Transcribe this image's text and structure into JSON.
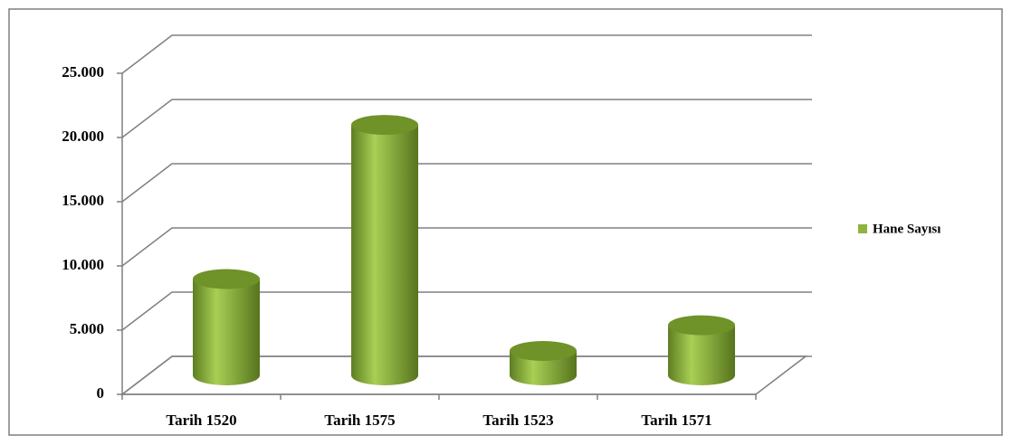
{
  "chart_data": {
    "type": "bar3d",
    "categories": [
      "Tarih 1520",
      "Tarih 1575",
      "Tarih 1523",
      "Tarih 1571"
    ],
    "series": [
      {
        "name": "Hane Sayısı",
        "color": "#8db43c",
        "values": [
          7500,
          19500,
          1900,
          3900
        ]
      }
    ],
    "ylim": [
      0,
      25000
    ],
    "yticks": [
      0,
      {
        "value": 5000,
        "label": "5.000"
      },
      {
        "value": 10000,
        "label": "10.000"
      },
      {
        "value": 15000,
        "label": "15.000"
      },
      {
        "value": 20000,
        "label": "20.000"
      },
      {
        "value": 25000,
        "label": "25.000"
      }
    ],
    "grid": true,
    "legend": "right"
  }
}
